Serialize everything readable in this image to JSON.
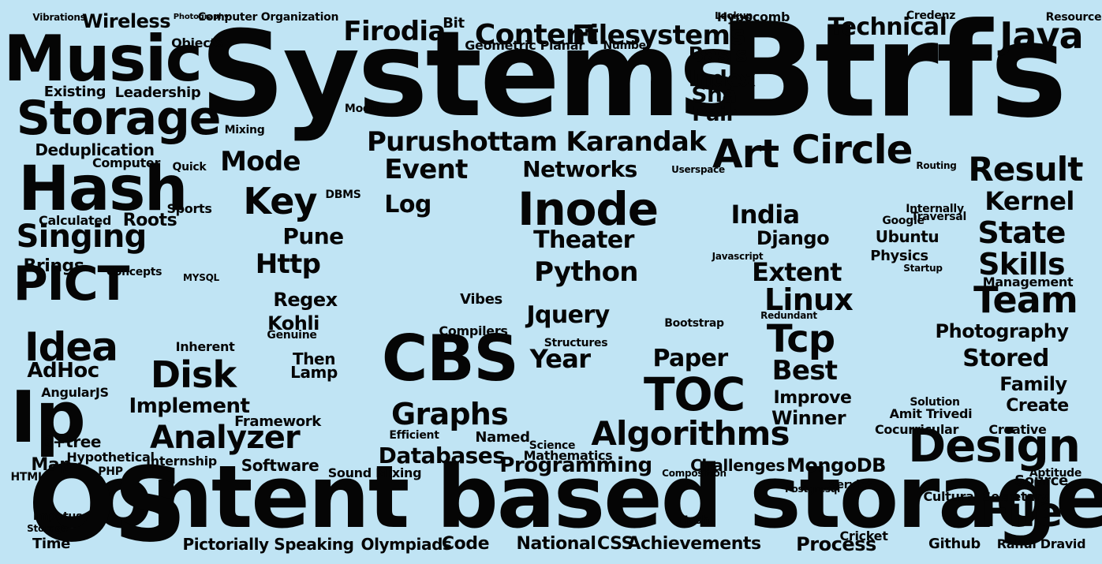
{
  "cloud": {
    "background": "#c0e4f4",
    "word_color": "#050505",
    "words": [
      {
        "text": "Systems",
        "weight": 100
      },
      {
        "text": "Btrfs",
        "weight": 100
      },
      {
        "text": "Content based storage",
        "weight": 85
      },
      {
        "text": "OS",
        "weight": 85
      },
      {
        "text": "Music",
        "weight": 70
      },
      {
        "text": "Hash",
        "weight": 60
      },
      {
        "text": "Storage",
        "weight": 55
      },
      {
        "text": "CBS",
        "weight": 60
      },
      {
        "text": "Ip",
        "weight": 60
      },
      {
        "text": "PICT",
        "weight": 50
      },
      {
        "text": "Idea",
        "weight": 45
      },
      {
        "text": "Inode",
        "weight": 45
      },
      {
        "text": "Design",
        "weight": 48
      },
      {
        "text": "File",
        "weight": 45
      },
      {
        "text": "TOC",
        "weight": 45
      },
      {
        "text": "Circle",
        "weight": 40
      },
      {
        "text": "Result",
        "weight": 38
      },
      {
        "text": "Team",
        "weight": 38
      },
      {
        "text": "Purushottam Karandak",
        "weight": 35
      },
      {
        "text": "Algorithms",
        "weight": 35
      },
      {
        "text": "Analyzer",
        "weight": 35
      },
      {
        "text": "Graphs",
        "weight": 32
      },
      {
        "text": "Disk",
        "weight": 35
      },
      {
        "text": "Linux",
        "weight": 32
      },
      {
        "text": "Tcp",
        "weight": 35
      },
      {
        "text": "Key",
        "weight": 32
      },
      {
        "text": "Art",
        "weight": 35
      },
      {
        "text": "Singing",
        "weight": 32
      },
      {
        "text": "Java",
        "weight": 32
      },
      {
        "text": "Firodia",
        "weight": 30
      },
      {
        "text": "Content",
        "weight": 30
      },
      {
        "text": "Filesystems",
        "weight": 30
      },
      {
        "text": "Technical",
        "weight": 28
      },
      {
        "text": "Mode",
        "weight": 28
      },
      {
        "text": "Event",
        "weight": 28
      },
      {
        "text": "Networks",
        "weight": 26
      },
      {
        "text": "Http",
        "weight": 28
      },
      {
        "text": "Python",
        "weight": 28
      },
      {
        "text": "Theater",
        "weight": 26
      },
      {
        "text": "Jquery",
        "weight": 26
      },
      {
        "text": "Year",
        "weight": 26
      },
      {
        "text": "Extent",
        "weight": 26
      },
      {
        "text": "Skills",
        "weight": 28
      },
      {
        "text": "State",
        "weight": 28
      },
      {
        "text": "Kernel",
        "weight": 24
      },
      {
        "text": "Photography",
        "weight": 22
      },
      {
        "text": "Stored",
        "weight": 22
      },
      {
        "text": "Family",
        "weight": 20
      },
      {
        "text": "Best",
        "weight": 24
      },
      {
        "text": "Paper",
        "weight": 22
      },
      {
        "text": "Databases",
        "weight": 22
      },
      {
        "text": "Programming",
        "weight": 20
      },
      {
        "text": "MongoDB",
        "weight": 20
      },
      {
        "text": "Achievements",
        "weight": 18
      },
      {
        "text": "Process",
        "weight": 18
      },
      {
        "text": "Code",
        "weight": 18
      },
      {
        "text": "National",
        "weight": 18
      },
      {
        "text": "CSS",
        "weight": 18
      },
      {
        "text": "Olympiads",
        "weight": 18
      },
      {
        "text": "Pictorially Speaking",
        "weight": 16
      },
      {
        "text": "Github",
        "weight": 16
      },
      {
        "text": "Rahul Dravid",
        "weight": 14
      },
      {
        "text": "Cricket",
        "weight": 16
      },
      {
        "text": "Create",
        "weight": 18
      },
      {
        "text": "Creative",
        "weight": 14
      },
      {
        "text": "Source",
        "weight": 16
      },
      {
        "text": "Cultural Secretary",
        "weight": 14
      },
      {
        "text": "Amit Trivedi",
        "weight": 14
      },
      {
        "text": "Solution",
        "weight": 14
      },
      {
        "text": "Winner",
        "weight": 20
      },
      {
        "text": "Improve",
        "weight": 18
      },
      {
        "text": "Implement",
        "weight": 22
      },
      {
        "text": "Software",
        "weight": 18
      },
      {
        "text": "Framework",
        "weight": 16
      },
      {
        "text": "Mathematics",
        "weight": 14
      },
      {
        "text": "Challenges",
        "weight": 16
      },
      {
        "text": "Sound Mixing",
        "weight": 14
      },
      {
        "text": "Internship",
        "weight": 14
      },
      {
        "text": "Hypothetical",
        "weight": 14
      },
      {
        "text": "B+tree",
        "weight": 18
      },
      {
        "text": "Map",
        "weight": 18
      },
      {
        "text": "Time",
        "weight": 16
      },
      {
        "text": "Storage",
        "weight": 10
      },
      {
        "text": "AdHoc",
        "weight": 20
      },
      {
        "text": "AngularJS",
        "weight": 14
      },
      {
        "text": "Brings",
        "weight": 18
      },
      {
        "text": "Roots",
        "weight": 18
      },
      {
        "text": "Calculated",
        "weight": 14
      },
      {
        "text": "Computer",
        "weight": 14
      },
      {
        "text": "Sports",
        "weight": 14
      },
      {
        "text": "Deduplication",
        "weight": 20
      },
      {
        "text": "Existing",
        "weight": 16
      },
      {
        "text": "Leadership",
        "weight": 16
      },
      {
        "text": "Wireless",
        "weight": 22
      },
      {
        "text": "Objects",
        "weight": 14
      },
      {
        "text": "Vibrations",
        "weight": 12
      },
      {
        "text": "Photography",
        "weight": 10
      },
      {
        "text": "Computer Organization",
        "weight": 12
      },
      {
        "text": "Bit",
        "weight": 20
      },
      {
        "text": "Geometric Planar",
        "weight": 14
      },
      {
        "text": "Number",
        "weight": 14
      },
      {
        "text": "Hypocomb",
        "weight": 14
      },
      {
        "text": "Credenz",
        "weight": 14
      },
      {
        "text": "Resources",
        "weight": 14
      },
      {
        "text": "Lookup",
        "weight": 14
      },
      {
        "text": "Pune",
        "weight": 22
      },
      {
        "text": "Index",
        "weight": 18
      },
      {
        "text": "Basis",
        "weight": 18
      },
      {
        "text": "Sha",
        "weight": 22
      },
      {
        "text": "Pair",
        "weight": 22
      },
      {
        "text": "Mixing",
        "weight": 14
      },
      {
        "text": "India",
        "weight": 22
      },
      {
        "text": "Regex",
        "weight": 18
      },
      {
        "text": "Log",
        "weight": 22
      },
      {
        "text": "Kohli",
        "weight": 22
      },
      {
        "text": "Lamp",
        "weight": 18
      },
      {
        "text": "Then",
        "weight": 18
      },
      {
        "text": "Genuine",
        "weight": 14
      },
      {
        "text": "Inherent",
        "weight": 16
      },
      {
        "text": "Structures",
        "weight": 14
      },
      {
        "text": "Compilers",
        "weight": 14
      },
      {
        "text": "Vibes",
        "weight": 14
      },
      {
        "text": "Named",
        "weight": 16
      },
      {
        "text": "Efficient",
        "weight": 14
      },
      {
        "text": "Science",
        "weight": 12
      },
      {
        "text": "Django",
        "weight": 20
      },
      {
        "text": "Ubuntu",
        "weight": 18
      },
      {
        "text": "Google",
        "weight": 14
      },
      {
        "text": "Traversal",
        "weight": 14
      },
      {
        "text": "Physics",
        "weight": 14
      },
      {
        "text": "Startup",
        "weight": 12
      },
      {
        "text": "Management",
        "weight": 14
      },
      {
        "text": "Javascript",
        "weight": 10
      },
      {
        "text": "Bootstrap",
        "weight": 12
      },
      {
        "text": "Servlet",
        "weight": 14
      },
      {
        "text": "Postgresql",
        "weight": 12
      },
      {
        "text": "Composition",
        "weight": 10
      },
      {
        "text": "Hash",
        "weight": 12
      },
      {
        "text": "Aptitude",
        "weight": 12
      },
      {
        "text": "Impetus",
        "weight": 12
      },
      {
        "text": "Cocurricular",
        "weight": 14
      },
      {
        "text": "PHP",
        "weight": 12
      },
      {
        "text": "MYSQL",
        "weight": 12
      },
      {
        "text": "Internally",
        "weight": 14
      },
      {
        "text": "Concepts",
        "weight": 12
      },
      {
        "text": "DBMS",
        "weight": 12
      },
      {
        "text": "Module",
        "weight": 12
      },
      {
        "text": "Quick",
        "weight": 12
      },
      {
        "text": "HTML",
        "weight": 12
      },
      {
        "text": "Redundant",
        "weight": 12
      },
      {
        "text": "Userspace",
        "weight": 10
      },
      {
        "text": "Routing",
        "weight": 10
      }
    ]
  }
}
